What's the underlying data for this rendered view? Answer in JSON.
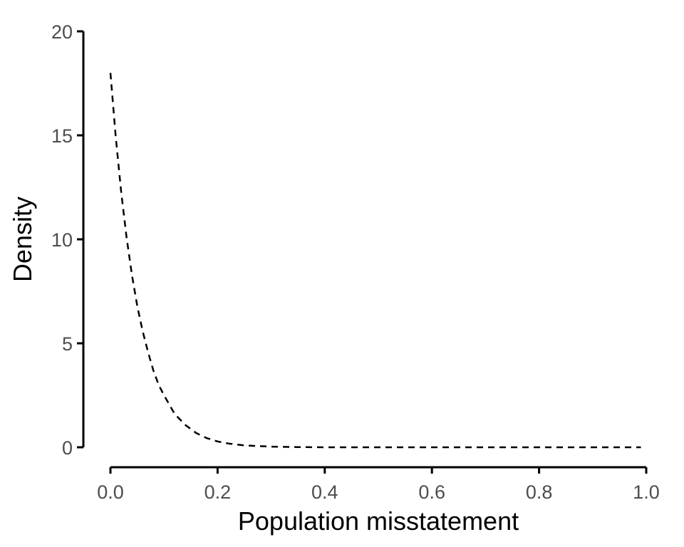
{
  "chart_data": {
    "type": "line",
    "xlabel": "Population misstatement",
    "ylabel": "Density",
    "xlim": [
      0,
      1
    ],
    "ylim": [
      0,
      20
    ],
    "xticks": [
      0.0,
      0.2,
      0.4,
      0.6,
      0.8,
      1.0
    ],
    "xtick_labels": [
      "0.0",
      "0.2",
      "0.4",
      "0.6",
      "0.8",
      "1.0"
    ],
    "yticks": [
      0,
      5,
      10,
      15,
      20
    ],
    "ytick_labels": [
      "0",
      "5",
      "10",
      "15",
      "20"
    ],
    "grid": false,
    "series": [
      {
        "line_style": "dashed",
        "color": "#000000",
        "x": [
          0,
          0.01,
          0.02,
          0.03,
          0.04,
          0.05,
          0.06,
          0.07,
          0.08,
          0.09,
          0.1,
          0.12,
          0.14,
          0.16,
          0.18,
          0.2,
          0.22,
          0.25,
          0.3,
          0.35,
          0.4,
          0.5,
          0.6,
          0.7,
          0.8,
          0.9,
          0.99
        ],
        "y": [
          18.0,
          14.9,
          12.3,
          10.1,
          8.3,
          6.8,
          5.6,
          4.6,
          3.7,
          3.0,
          2.5,
          1.6,
          1.07,
          0.69,
          0.44,
          0.28,
          0.18,
          0.09,
          0.03,
          0.01,
          0.0,
          0.0,
          0.0,
          0.0,
          0.0,
          0.0,
          0.0
        ]
      }
    ]
  }
}
